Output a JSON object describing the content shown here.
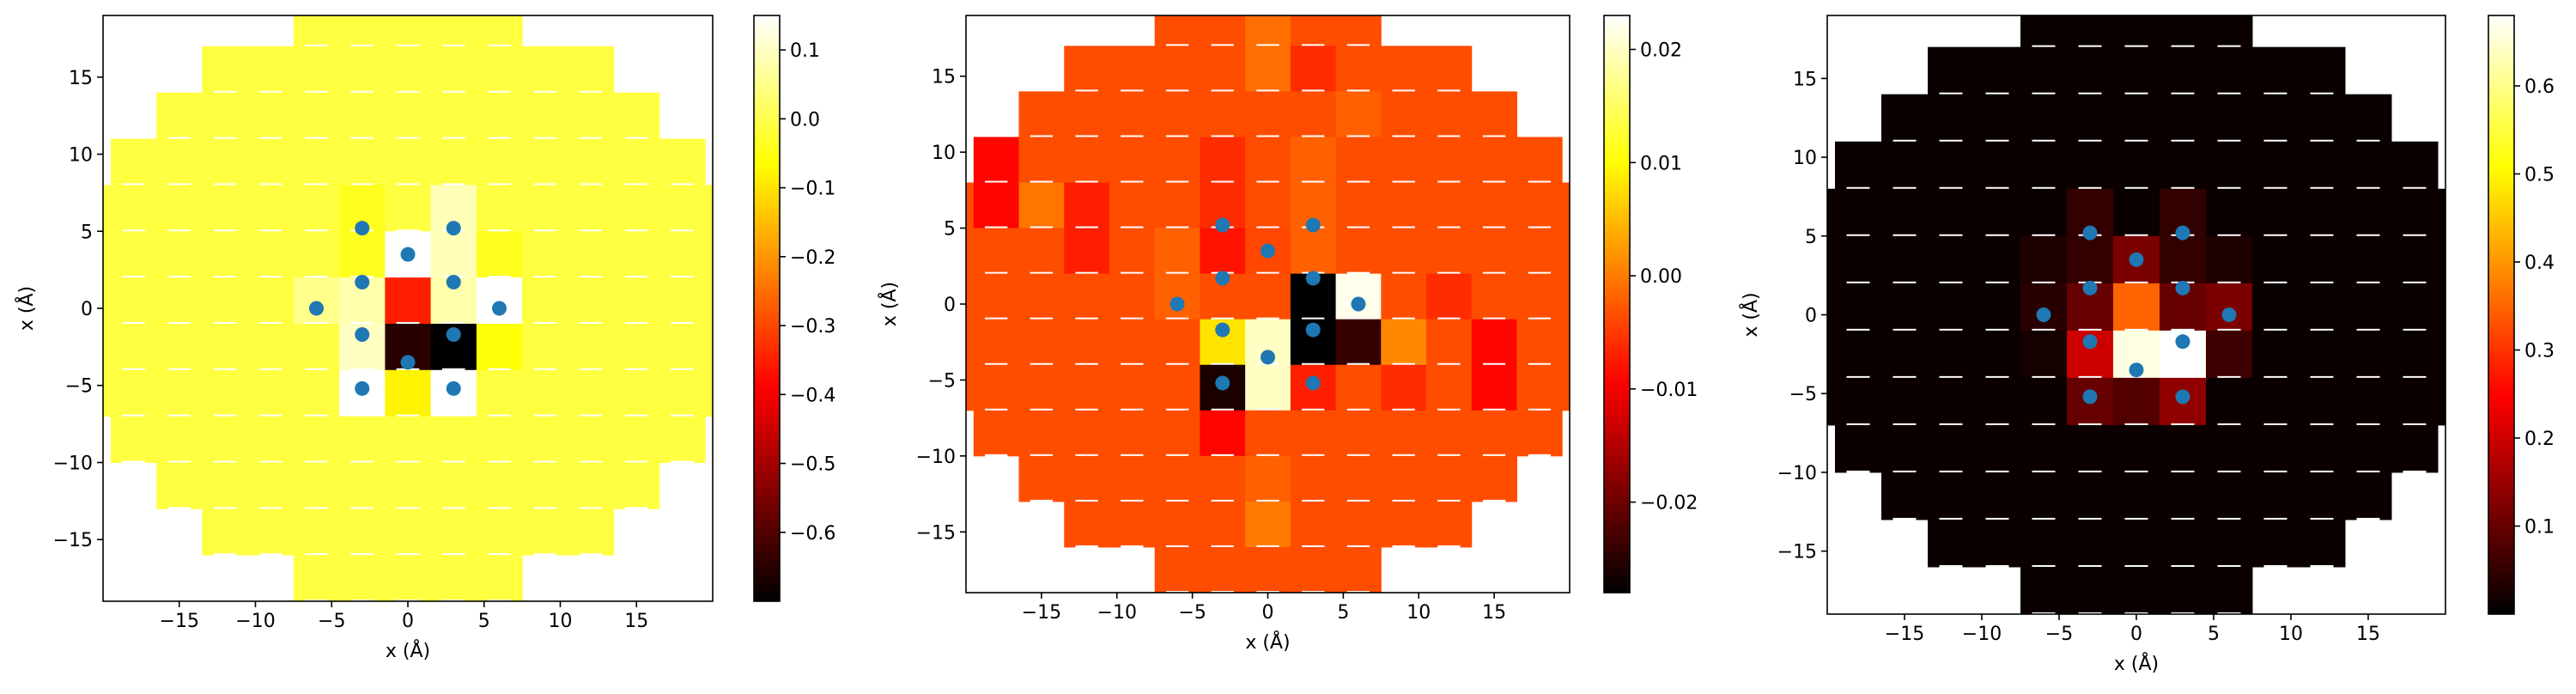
{
  "chart_data": [
    {
      "type": "heatmap",
      "title": "",
      "xlabel": "x (Å)",
      "ylabel": "x (Å)",
      "xlim": [
        -20,
        20
      ],
      "ylim": [
        -19,
        19
      ],
      "xticks": [
        -15,
        -10,
        -5,
        0,
        5,
        10,
        15
      ],
      "yticks": [
        -15,
        -10,
        -5,
        0,
        5,
        10,
        15
      ],
      "xtick_labels": [
        "−15",
        "−10",
        "−5",
        "0",
        "5",
        "10",
        "15"
      ],
      "ytick_labels": [
        "−15",
        "−10",
        "−5",
        "0",
        "5",
        "10",
        "15"
      ],
      "colormap": "hot",
      "colorbar": {
        "vmin": -0.7,
        "vmax": 0.15,
        "ticks": [
          -0.6,
          -0.5,
          -0.4,
          -0.3,
          -0.2,
          -0.1,
          0.0,
          0.1
        ],
        "tick_labels": [
          "−0.6",
          "−0.5",
          "−0.4",
          "−0.3",
          "−0.2",
          "−0.1",
          "0.0",
          "0.1"
        ]
      },
      "background_value": -0.01,
      "cells": [
        {
          "x": -3,
          "y": 5,
          "value": -0.04
        },
        {
          "x": 3,
          "y": 5,
          "value": 0.09
        },
        {
          "x": 6,
          "y": 4,
          "value": -0.04
        },
        {
          "x": 0,
          "y": 3,
          "value": 0.15
        },
        {
          "x": -3,
          "y": 2,
          "value": 0.08
        },
        {
          "x": 3,
          "y": 2,
          "value": 0.08
        },
        {
          "x": -6,
          "y": 0,
          "value": 0.05
        },
        {
          "x": 6,
          "y": 0,
          "value": 0.15
        },
        {
          "x": 0,
          "y": 0,
          "value": -0.35
        },
        {
          "x": 3,
          "y": -1,
          "value": -0.7
        },
        {
          "x": -3,
          "y": -2,
          "value": 0.1
        },
        {
          "x": 0,
          "y": -3,
          "value": -0.65
        },
        {
          "x": 6,
          "y": -3,
          "value": -0.06
        },
        {
          "x": -3,
          "y": -5,
          "value": 0.15
        },
        {
          "x": 3,
          "y": -5,
          "value": 0.15
        },
        {
          "x": 0,
          "y": -6,
          "value": -0.08
        }
      ],
      "points": [
        {
          "x": -3,
          "y": 5.2
        },
        {
          "x": 3,
          "y": 5.2
        },
        {
          "x": 0,
          "y": 3.5
        },
        {
          "x": -3,
          "y": 1.7
        },
        {
          "x": 3,
          "y": 1.7
        },
        {
          "x": -6,
          "y": 0
        },
        {
          "x": 6,
          "y": 0
        },
        {
          "x": -3,
          "y": -1.7
        },
        {
          "x": 3,
          "y": -1.7
        },
        {
          "x": 0,
          "y": -3.5
        },
        {
          "x": -3,
          "y": -5.2
        },
        {
          "x": 3,
          "y": -5.2
        }
      ]
    },
    {
      "type": "heatmap",
      "title": "",
      "xlabel": "x (Å)",
      "ylabel": "x (Å)",
      "xlim": [
        -20,
        20
      ],
      "ylim": [
        -19,
        19
      ],
      "xticks": [
        -15,
        -10,
        -5,
        0,
        5,
        10,
        15
      ],
      "yticks": [
        -15,
        -10,
        -5,
        0,
        5,
        10,
        15
      ],
      "xtick_labels": [
        "−15",
        "−10",
        "−5",
        "0",
        "5",
        "10",
        "15"
      ],
      "ytick_labels": [
        "−15",
        "−10",
        "−5",
        "0",
        "5",
        "10",
        "15"
      ],
      "colormap": "hot",
      "colorbar": {
        "vmin": -0.028,
        "vmax": 0.023,
        "ticks": [
          -0.02,
          -0.01,
          0.0,
          0.01,
          0.02
        ],
        "tick_labels": [
          "−0.02",
          "−0.01",
          "0.00",
          "0.01",
          "0.02"
        ]
      },
      "background_value": -0.0035,
      "cells": [
        {
          "x": -17,
          "y": 8,
          "value": -0.009
        },
        {
          "x": -14,
          "y": 6,
          "value": -0.0005
        },
        {
          "x": -11,
          "y": 5,
          "value": -0.007
        },
        {
          "x": 0,
          "y": 17,
          "value": -0.001
        },
        {
          "x": 3,
          "y": 15,
          "value": -0.006
        },
        {
          "x": 6,
          "y": 13,
          "value": -0.002
        },
        {
          "x": -3,
          "y": 8,
          "value": -0.006
        },
        {
          "x": 3,
          "y": 9,
          "value": -0.002
        },
        {
          "x": -3,
          "y": 5,
          "value": -0.008
        },
        {
          "x": 3,
          "y": 5,
          "value": -0.002
        },
        {
          "x": 0,
          "y": 3,
          "value": -0.004
        },
        {
          "x": 6,
          "y": 0,
          "value": 0.022
        },
        {
          "x": 3,
          "y": -1,
          "value": -0.028
        },
        {
          "x": -3,
          "y": -2,
          "value": 0.008
        },
        {
          "x": 0,
          "y": -3,
          "value": 0.02
        },
        {
          "x": 6,
          "y": -3,
          "value": -0.024
        },
        {
          "x": -3,
          "y": -5,
          "value": -0.026
        },
        {
          "x": 0,
          "y": -6,
          "value": 0.02
        },
        {
          "x": 3,
          "y": -6,
          "value": -0.007
        },
        {
          "x": 9,
          "y": -2,
          "value": 0.001
        },
        {
          "x": 12,
          "y": 0,
          "value": -0.006
        },
        {
          "x": 9,
          "y": -6,
          "value": -0.006
        },
        {
          "x": -3,
          "y": -9,
          "value": -0.009
        },
        {
          "x": 0,
          "y": -12,
          "value": -0.002
        },
        {
          "x": 0,
          "y": -15,
          "value": 0.0
        },
        {
          "x": -6,
          "y": 2,
          "value": -0.002
        },
        {
          "x": 14,
          "y": -4,
          "value": -0.009
        }
      ],
      "points": [
        {
          "x": -3,
          "y": 5.2
        },
        {
          "x": 3,
          "y": 5.2
        },
        {
          "x": 0,
          "y": 3.5
        },
        {
          "x": -3,
          "y": 1.7
        },
        {
          "x": 3,
          "y": 1.7
        },
        {
          "x": -6,
          "y": 0
        },
        {
          "x": 6,
          "y": 0
        },
        {
          "x": -3,
          "y": -1.7
        },
        {
          "x": 3,
          "y": -1.7
        },
        {
          "x": 0,
          "y": -3.5
        },
        {
          "x": -3,
          "y": -5.2
        },
        {
          "x": 3,
          "y": -5.2
        }
      ]
    },
    {
      "type": "heatmap",
      "title": "",
      "xlabel": "x (Å)",
      "ylabel": "x (Å)",
      "xlim": [
        -20,
        20
      ],
      "ylim": [
        -19,
        19
      ],
      "xticks": [
        -15,
        -10,
        -5,
        0,
        5,
        10,
        15
      ],
      "yticks": [
        -15,
        -10,
        -5,
        0,
        5,
        10,
        15
      ],
      "xtick_labels": [
        "−15",
        "−10",
        "−5",
        "0",
        "5",
        "10",
        "15"
      ],
      "ytick_labels": [
        "−15",
        "−10",
        "−5",
        "0",
        "5",
        "10",
        "15"
      ],
      "colormap": "hot",
      "colorbar": {
        "vmin": 0.0,
        "vmax": 0.68,
        "ticks": [
          0.1,
          0.2,
          0.3,
          0.4,
          0.5,
          0.6
        ],
        "tick_labels": [
          "0.1",
          "0.2",
          "0.3",
          "0.4",
          "0.5",
          "0.6"
        ]
      },
      "background_value": 0.01,
      "cells": [
        {
          "x": -3,
          "y": 5,
          "value": 0.05
        },
        {
          "x": 3,
          "y": 5,
          "value": 0.05
        },
        {
          "x": 0,
          "y": 3,
          "value": 0.12
        },
        {
          "x": -6,
          "y": 3,
          "value": 0.03
        },
        {
          "x": 6,
          "y": 3,
          "value": 0.03
        },
        {
          "x": -3,
          "y": 2,
          "value": 0.1
        },
        {
          "x": 3,
          "y": 2,
          "value": 0.1
        },
        {
          "x": -6,
          "y": 0,
          "value": 0.04
        },
        {
          "x": 6,
          "y": 0,
          "value": 0.12
        },
        {
          "x": 0,
          "y": 0,
          "value": 0.35
        },
        {
          "x": 3,
          "y": -1,
          "value": 0.68
        },
        {
          "x": -3,
          "y": -2,
          "value": 0.2
        },
        {
          "x": 0,
          "y": -3,
          "value": 0.66
        },
        {
          "x": 6,
          "y": -3,
          "value": 0.06
        },
        {
          "x": -3,
          "y": -5,
          "value": 0.1
        },
        {
          "x": 3,
          "y": -5,
          "value": 0.14
        },
        {
          "x": 0,
          "y": -6,
          "value": 0.08
        },
        {
          "x": -6,
          "y": -3,
          "value": 0.02
        }
      ],
      "points": [
        {
          "x": -3,
          "y": 5.2
        },
        {
          "x": 3,
          "y": 5.2
        },
        {
          "x": 0,
          "y": 3.5
        },
        {
          "x": -3,
          "y": 1.7
        },
        {
          "x": 3,
          "y": 1.7
        },
        {
          "x": -6,
          "y": 0
        },
        {
          "x": 6,
          "y": 0
        },
        {
          "x": -3,
          "y": -1.7
        },
        {
          "x": 3,
          "y": -1.7
        },
        {
          "x": 0,
          "y": -3.5
        },
        {
          "x": -3,
          "y": -5.2
        },
        {
          "x": 3,
          "y": -5.2
        }
      ]
    }
  ]
}
